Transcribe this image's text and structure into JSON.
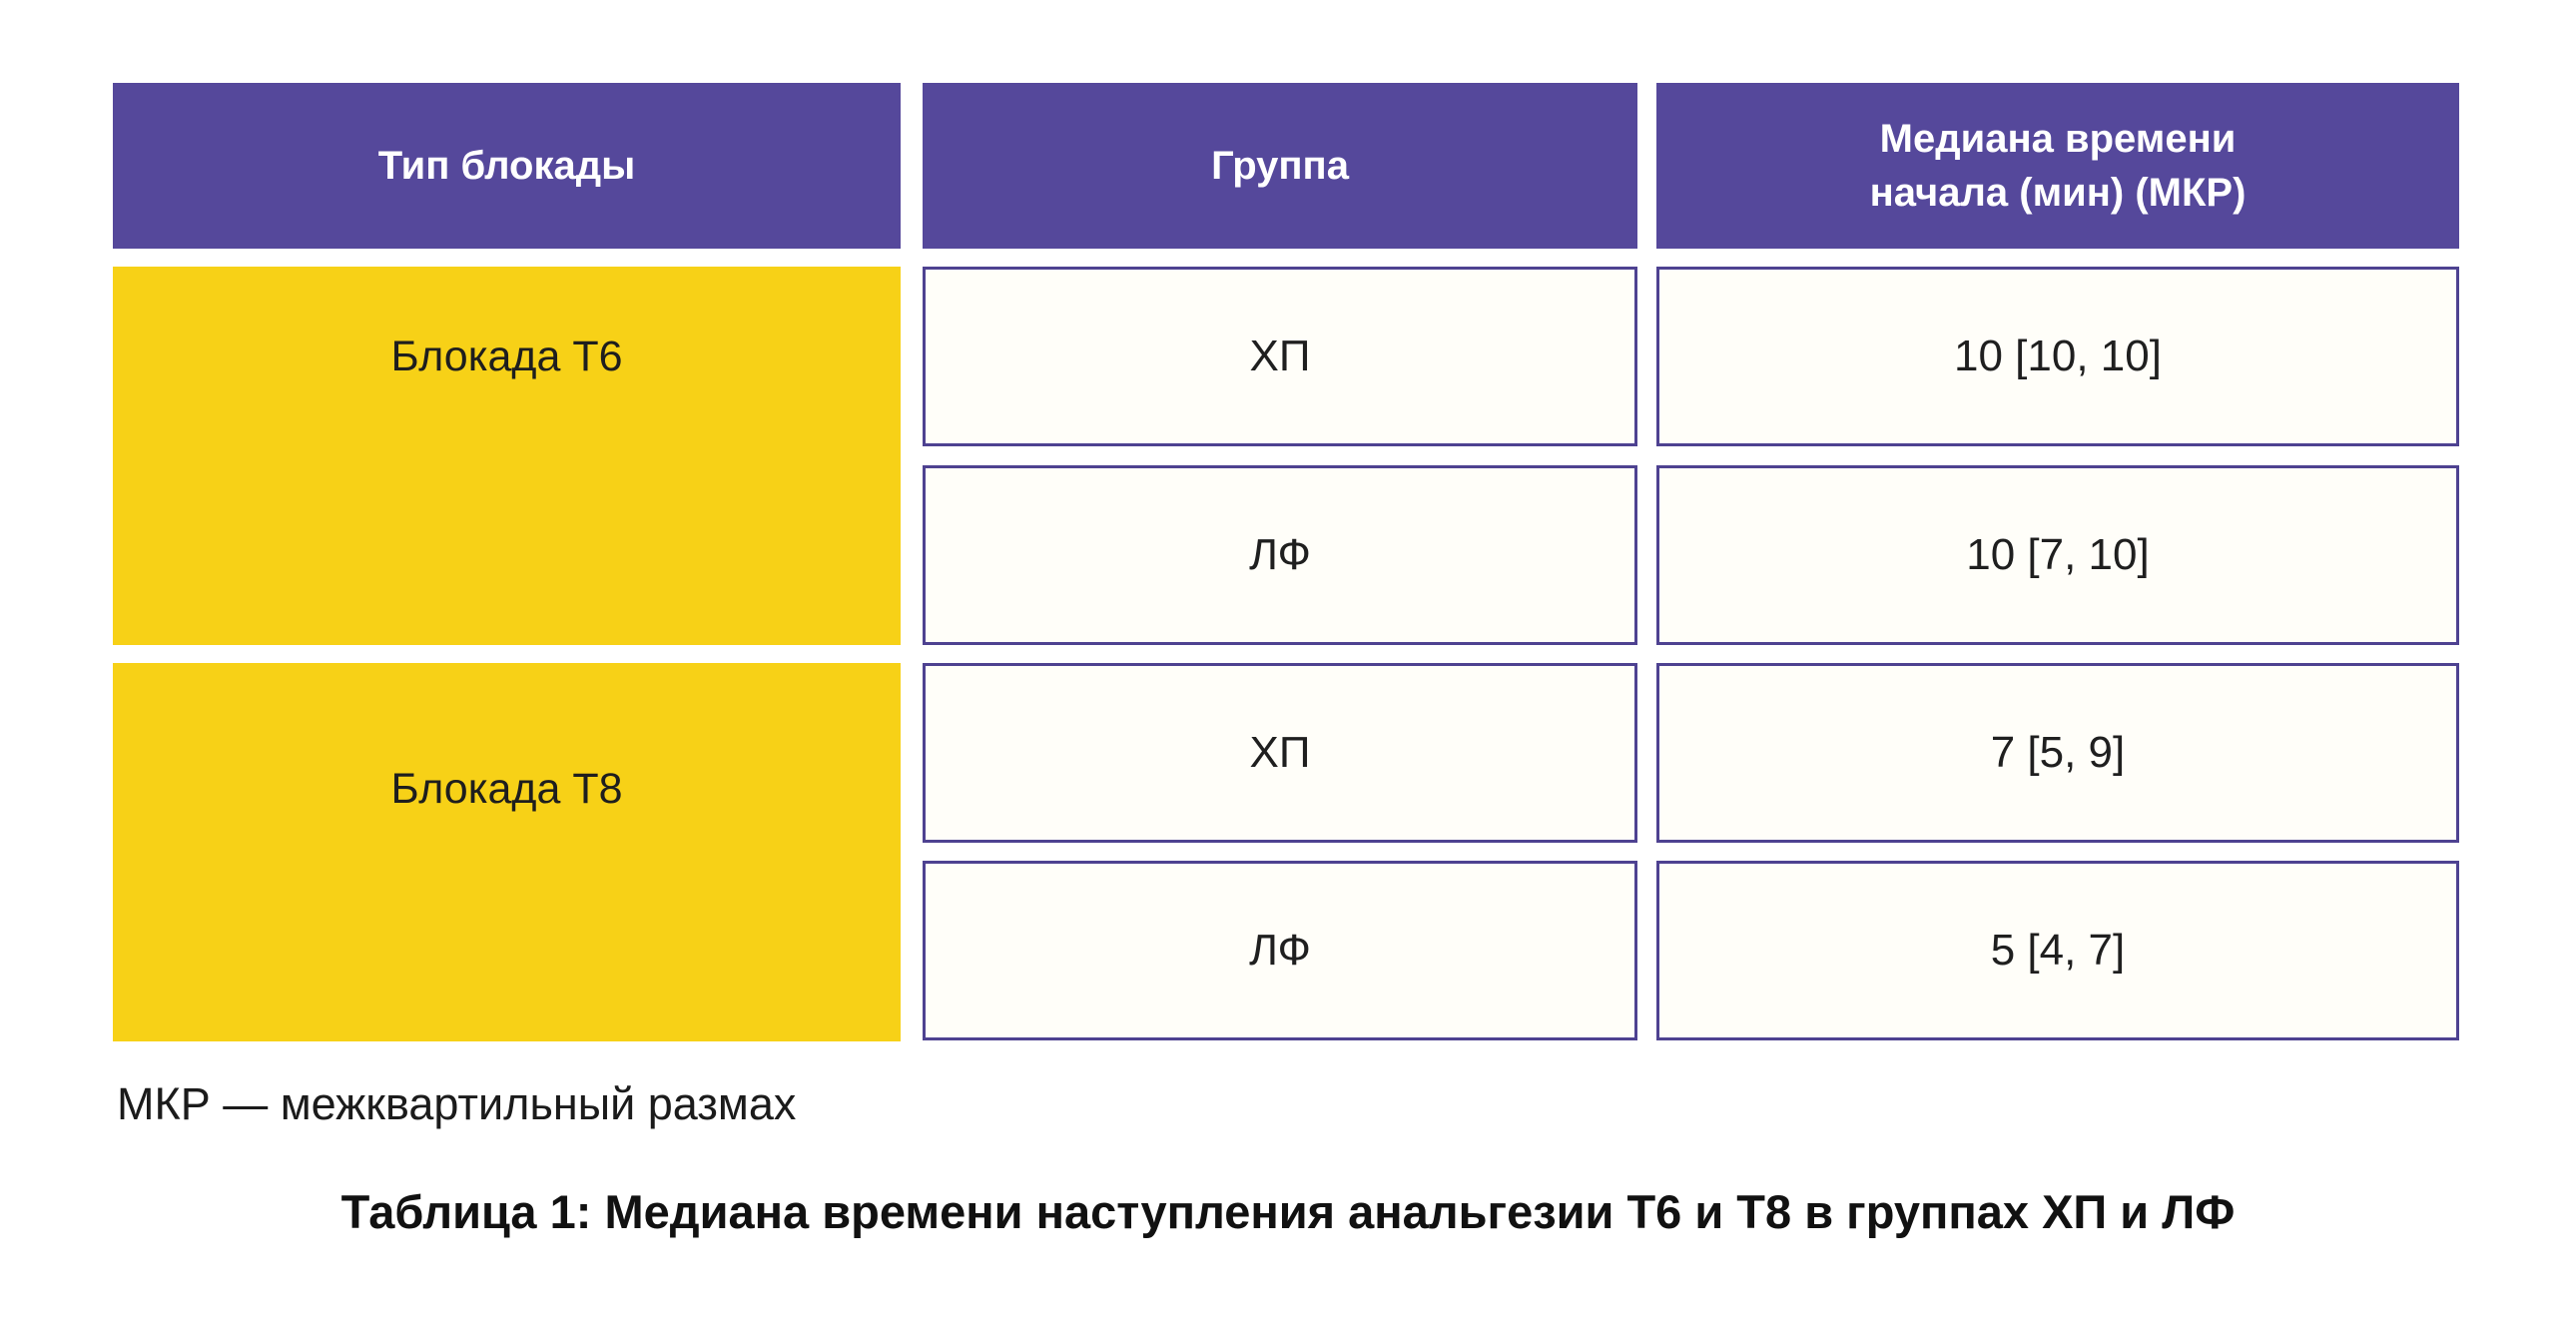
{
  "table": {
    "headers": [
      "Тип блокады",
      "Группа",
      "Медиана времени начала (мин) (МКР)"
    ],
    "header3_line1": "Медиана времени",
    "header3_line2": "начала (мин) (МКР)",
    "blocks": [
      {
        "type_label": "Блокада Т6",
        "rows": [
          {
            "group": "ХП",
            "value": "10 [10, 10]"
          },
          {
            "group": "ЛФ",
            "value": "10 [7, 10]"
          }
        ]
      },
      {
        "type_label": "Блокада Т8",
        "rows": [
          {
            "group": "ХП",
            "value": "7 [5, 9]"
          },
          {
            "group": "ЛФ",
            "value": "5 [4, 7]"
          }
        ]
      }
    ],
    "footnote": "МКР — межквартильный размах",
    "caption": "Таблица 1: Медиана времени наступления анальгезии Т6 и Т8 в группах ХП и ЛФ"
  },
  "chart_data": {
    "type": "table",
    "title": "Таблица 1: Медиана времени наступления анальгезии Т6 и Т8 в группах ХП и ЛФ",
    "columns": [
      "Тип блокады",
      "Группа",
      "Медиана времени начала (мин) (МКР)"
    ],
    "rows": [
      [
        "Блокада Т6",
        "ХП",
        "10 [10, 10]"
      ],
      [
        "Блокада Т6",
        "ЛФ",
        "10 [7, 10]"
      ],
      [
        "Блокада Т8",
        "ХП",
        "7 [5, 9]"
      ],
      [
        "Блокада Т8",
        "ЛФ",
        "5 [4, 7]"
      ]
    ],
    "values_numeric": [
      {
        "block": "Т6",
        "group": "ХП",
        "median_min": 10,
        "iqr_low": 10,
        "iqr_high": 10
      },
      {
        "block": "Т6",
        "group": "ЛФ",
        "median_min": 10,
        "iqr_low": 7,
        "iqr_high": 10
      },
      {
        "block": "Т8",
        "group": "ХП",
        "median_min": 7,
        "iqr_low": 5,
        "iqr_high": 9
      },
      {
        "block": "Т8",
        "group": "ЛФ",
        "median_min": 5,
        "iqr_low": 4,
        "iqr_high": 7
      }
    ],
    "footnote": "МКР — межквартильный размах",
    "legend_position": "none",
    "grid": false
  },
  "colors": {
    "header_purple": "#55489b",
    "cell_border_purple": "#4e4291",
    "accent_yellow": "#f7d117",
    "cell_background": "#fffef9",
    "text_dark": "#1e1e1e"
  }
}
